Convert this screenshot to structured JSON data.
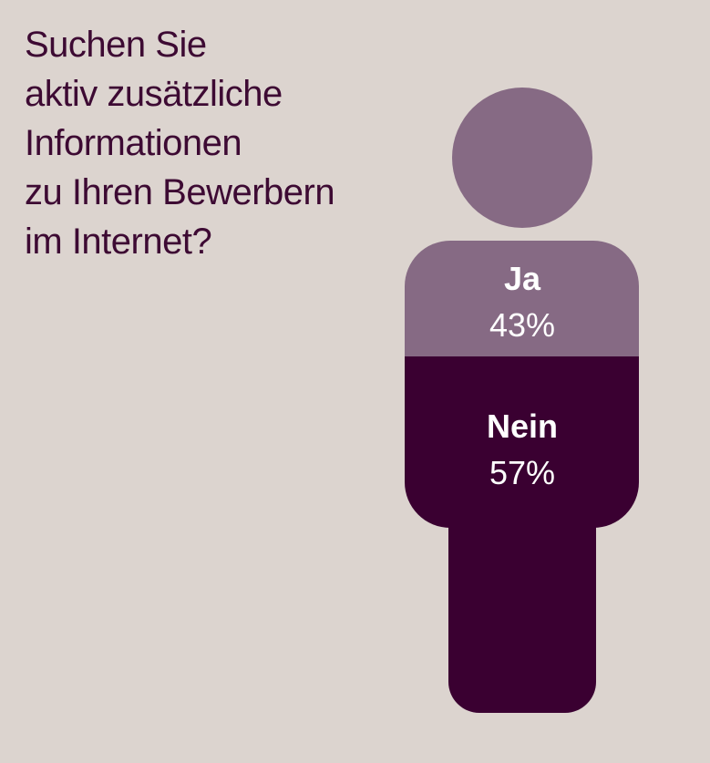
{
  "colors": {
    "background": "#dcd4cf",
    "question_text": "#3d0a33",
    "ja": "#866a84",
    "nein": "#3a0031",
    "label_text": "#ffffff"
  },
  "question": {
    "lines": [
      "Suchen Sie",
      "aktiv zusätzliche",
      "Informationen",
      "zu Ihren Bewerbern",
      "im Internet?"
    ]
  },
  "chart_data": {
    "type": "pie",
    "title": "Suchen Sie aktiv zusätzliche Informationen zu Ihren Bewerbern im Internet?",
    "categories": [
      "Ja",
      "Nein"
    ],
    "values": [
      43,
      57
    ],
    "value_labels": [
      "43%",
      "57%"
    ],
    "colors": [
      "#866a84",
      "#3a0031"
    ],
    "legend": "none"
  }
}
